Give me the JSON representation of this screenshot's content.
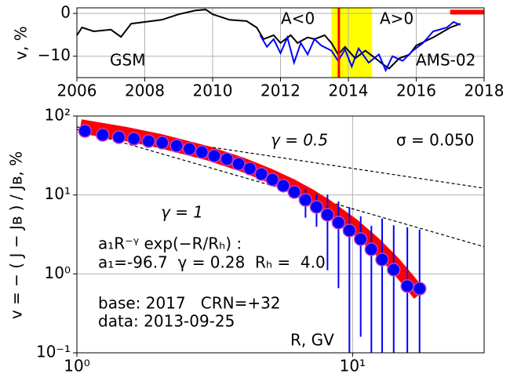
{
  "chart_data": [
    {
      "type": "line",
      "ylabel": "v, %",
      "xlim": [
        2006,
        2018
      ],
      "xticks": [
        2006,
        2008,
        2010,
        2012,
        2014,
        2016,
        2018
      ],
      "ylim": [
        -15,
        1.3
      ],
      "yticks": [
        0,
        {
          "value": -10,
          "label": "−10"
        }
      ],
      "grid": true,
      "series": [
        {
          "name": "GSM",
          "color": "#000000",
          "x": [
            2006.0,
            2006.15,
            2006.5,
            2007.0,
            2007.3,
            2007.6,
            2008.0,
            2008.5,
            2009.0,
            2009.5,
            2009.8,
            2010.0,
            2010.5,
            2011.0,
            2011.3,
            2011.5,
            2011.8,
            2012.0,
            2012.3,
            2012.5,
            2012.8,
            2013.0,
            2013.3,
            2013.5,
            2013.7,
            2013.9,
            2014.2,
            2014.5,
            2014.8,
            2015.0,
            2015.2,
            2015.5,
            2015.8,
            2016.0,
            2016.5,
            2017.0,
            2017.3
          ],
          "values": [
            -5.1,
            -3.3,
            -4.2,
            -3.8,
            -5.5,
            -2.4,
            -2.0,
            -1.5,
            -0.2,
            0.7,
            0.9,
            -0.2,
            -1.5,
            -1.8,
            -3.3,
            -6.0,
            -5.1,
            -6.9,
            -5.1,
            -6.9,
            -5.6,
            -6.0,
            -5.1,
            -6.9,
            -9.6,
            -7.8,
            -10.5,
            -8.7,
            -10.5,
            -11.8,
            -12.9,
            -10.5,
            -9.6,
            -7.5,
            -5.6,
            -3.3,
            -2.4
          ]
        },
        {
          "name": "AMS-02",
          "color": "#0000ff",
          "x": [
            2011.4,
            2011.6,
            2011.8,
            2012.0,
            2012.2,
            2012.4,
            2012.6,
            2012.8,
            2013.0,
            2013.2,
            2013.5,
            2013.7,
            2013.9,
            2014.1,
            2014.3,
            2014.6,
            2014.9,
            2015.1,
            2015.3,
            2015.6,
            2015.9,
            2016.2,
            2016.5,
            2016.9,
            2017.1,
            2017.3
          ],
          "values": [
            -5.1,
            -7.8,
            -6.0,
            -9.3,
            -5.6,
            -11.5,
            -6.9,
            -9.6,
            -6.0,
            -7.5,
            -8.7,
            -11.1,
            -8.4,
            -12.4,
            -8.2,
            -11.5,
            -9.6,
            -13.3,
            -10.0,
            -11.1,
            -8.7,
            -6.9,
            -4.2,
            -3.3,
            -2.0,
            -2.7
          ]
        }
      ],
      "annotations": [
        "A<0",
        "A>0"
      ],
      "highlight_span": {
        "x": [
          2013.5,
          2014.7
        ],
        "color": "#ffff00"
      },
      "marker_line": {
        "x": 2013.72,
        "color": "#ff0000"
      },
      "red_bar": {
        "x": [
          2017.0,
          2018.0
        ],
        "value": 0.3,
        "color": "#ff0000"
      }
    },
    {
      "type": "scatter",
      "log_scale": true,
      "xlabel": "R, GV",
      "ylabel": "v = − ( J − Jʙ ) / Jʙ, %",
      "xlim": [
        1,
        30
      ],
      "xticks": [
        {
          "value": 1,
          "label": "10⁰"
        },
        {
          "value": 10,
          "label": "10¹"
        }
      ],
      "ylim": [
        0.1,
        100
      ],
      "yticks": [
        {
          "value": 0.1,
          "label": "10⁻¹"
        },
        {
          "value": 1,
          "label": "10⁰"
        },
        {
          "value": 10,
          "label": "10¹"
        },
        {
          "value": 100,
          "label": "10²"
        }
      ],
      "grid": true,
      "series": [
        {
          "color": "#0000ff",
          "edge_color": "#c040c0",
          "x": [
            1.07,
            1.24,
            1.42,
            1.61,
            1.82,
            2.04,
            2.3,
            2.56,
            2.84,
            3.15,
            3.5,
            3.86,
            4.24,
            4.67,
            5.12,
            5.61,
            6.15,
            6.75,
            7.4,
            8.11,
            8.89,
            9.74,
            10.7,
            11.7,
            12.8,
            14.1,
            15.8,
            17.5
          ],
          "values": [
            64.7,
            57.8,
            54.0,
            51.5,
            48.1,
            45.9,
            41.9,
            38.3,
            34.9,
            31.2,
            28.4,
            24.8,
            21.6,
            18.4,
            15.7,
            13.1,
            10.9,
            8.65,
            7.05,
            5.61,
            4.46,
            3.55,
            2.76,
            2.05,
            1.52,
            1.13,
            0.7,
            0.65
          ],
          "errors": [
            0.5,
            0.5,
            0.5,
            0.5,
            0.5,
            0.5,
            0.5,
            0.5,
            0.5,
            0.5,
            0.5,
            0.6,
            0.6,
            0.7,
            0.8,
            1.0,
            1.5,
            3.5,
            3.1,
            4.5,
            3.8,
            3.45,
            2.6,
            2.0,
            3.5,
            3.0,
            3.2,
            3.0
          ]
        }
      ],
      "fit": {
        "color": "#ff0000",
        "x": [
          1.03,
          1.5,
          2,
          3,
          4,
          5,
          6,
          7,
          8,
          10,
          12,
          14,
          16,
          17.5
        ],
        "values": [
          74.1,
          59.3,
          48.3,
          33.6,
          24.1,
          17.6,
          13.1,
          9.75,
          7.31,
          4.17,
          2.4,
          1.4,
          0.81,
          0.55
        ]
      },
      "reference_lines": [
        {
          "label": "γ = 0.5",
          "x": [
            1,
            30
          ],
          "values": [
            72.6,
            12.2
          ]
        },
        {
          "label": "γ = 1",
          "x": [
            1,
            30
          ],
          "values": [
            67.8,
            2.21
          ]
        }
      ],
      "annotations": [
        "σ = 0.050",
        "a₁R⁻ᵞ exp(−R/Rₕ) :",
        "a₁=-96.7  γ = 0.28  Rₕ =  4.0",
        "base: 2017   CRN=+32",
        "data: 2013-09-25"
      ]
    }
  ]
}
